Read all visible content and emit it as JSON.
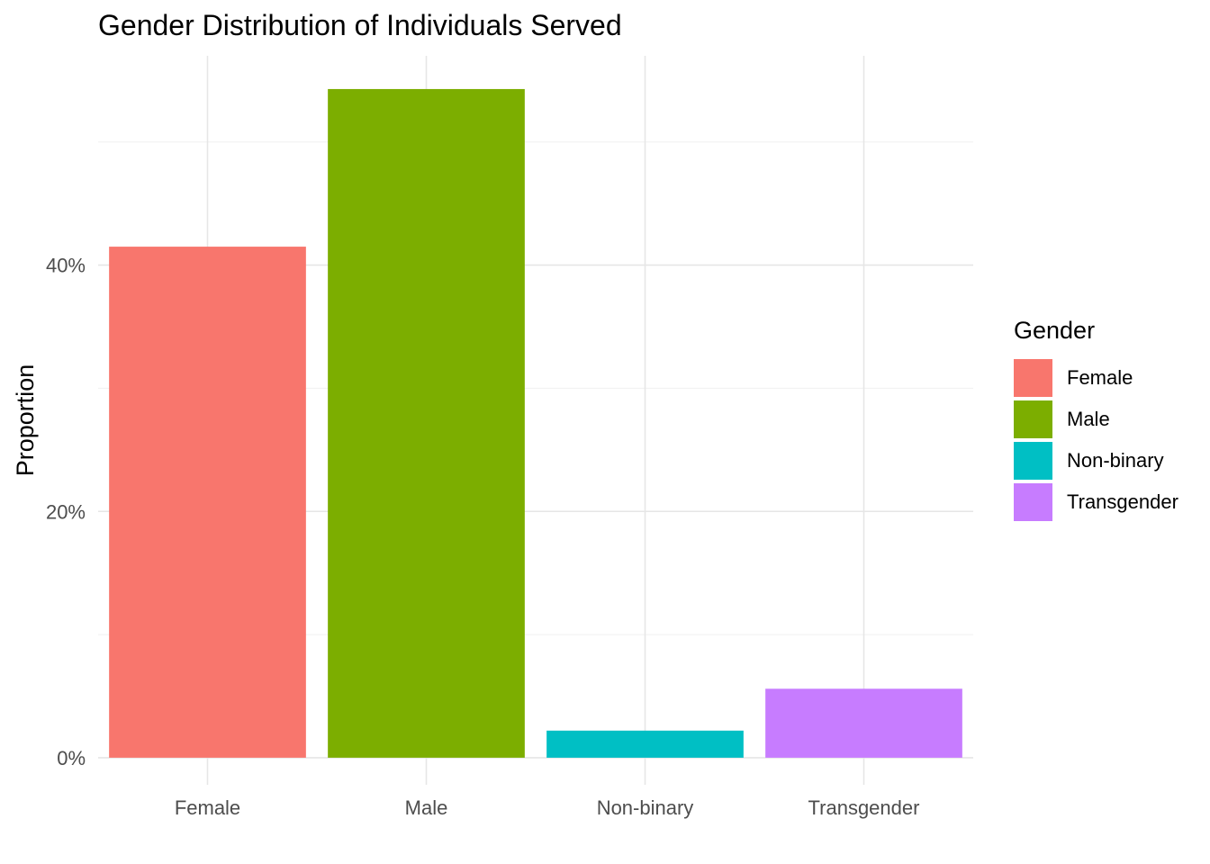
{
  "chart_data": {
    "type": "bar",
    "title": "Gender Distribution of Individuals Served",
    "xlabel": "",
    "ylabel": "Proportion",
    "categories": [
      "Female",
      "Male",
      "Non-binary",
      "Transgender"
    ],
    "values": [
      0.415,
      0.543,
      0.022,
      0.056
    ],
    "colors": [
      "#F8766D",
      "#7CAE00",
      "#00BFC4",
      "#C77CFF"
    ],
    "ylim": [
      -0.022,
      0.57
    ],
    "y_ticks": [
      0,
      0.2,
      0.4
    ],
    "y_tick_labels": [
      "0%",
      "20%",
      "40%"
    ],
    "y_minor_ticks": [
      0.1,
      0.3,
      0.5
    ],
    "grid": true,
    "legend": {
      "title": "Gender",
      "position": "right",
      "entries": [
        "Female",
        "Male",
        "Non-binary",
        "Transgender"
      ]
    }
  }
}
